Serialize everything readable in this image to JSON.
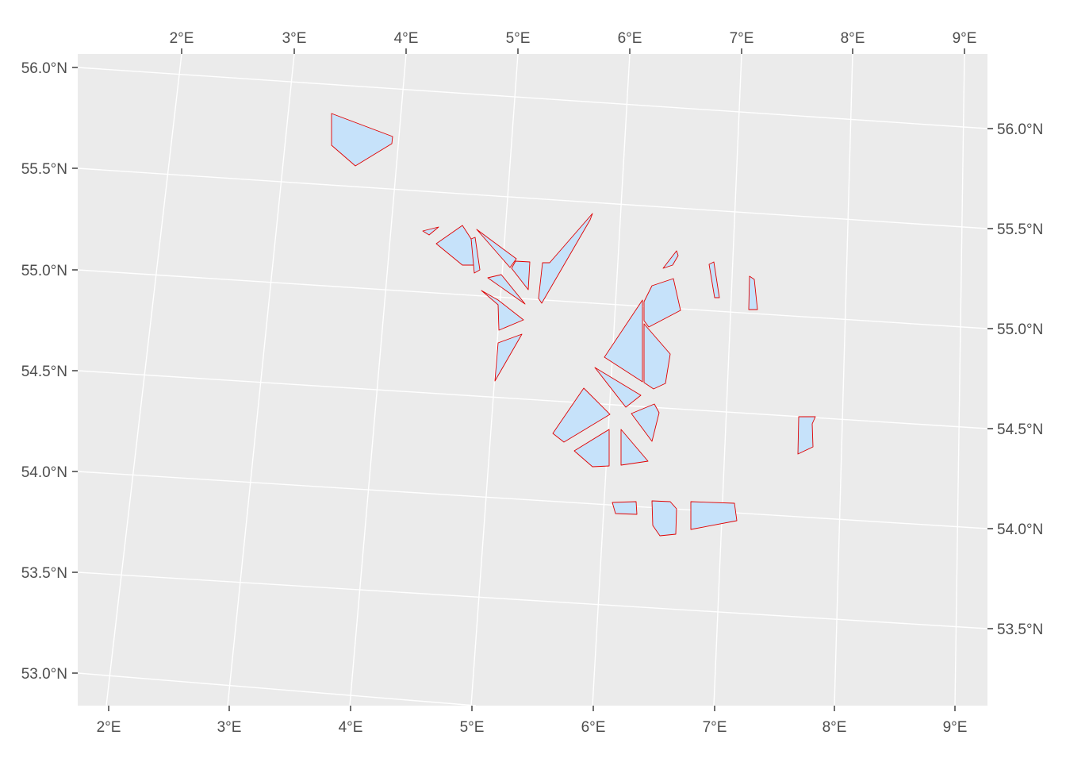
{
  "map": {
    "panel_color": "#ebebeb",
    "grid_color": "#ffffff",
    "zone_fill": "#c6e2fa",
    "zone_stroke": "#e00000",
    "bottom_axis_labels": [
      "2°E",
      "3°E",
      "4°E",
      "5°E",
      "6°E",
      "7°E",
      "8°E",
      "9°E"
    ],
    "top_axis_labels": [
      "2°E",
      "3°E",
      "4°E",
      "5°E",
      "6°E",
      "7°E",
      "8°E",
      "9°E"
    ],
    "left_axis_labels": [
      "53.0°N",
      "53.5°N",
      "54.0°N",
      "54.5°N",
      "55.0°N",
      "55.5°N",
      "56.0°N"
    ],
    "right_axis_labels": [
      "53.5°N",
      "54.0°N",
      "54.5°N",
      "55.0°N",
      "55.5°N",
      "56.0°N"
    ],
    "zones_count_shown": 26
  }
}
